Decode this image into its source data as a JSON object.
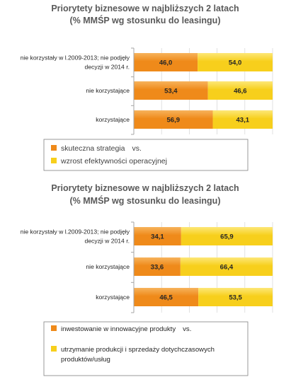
{
  "colors": {
    "series_a": "#ef8a1a",
    "series_a_light": "#f7b35c",
    "series_b": "#f7cf1c",
    "series_b_light": "#fde778",
    "grid": "#d9d9d9",
    "axis": "#a6a6a6"
  },
  "chart_data": [
    {
      "type": "bar",
      "orientation": "horizontal",
      "stacked": true,
      "title": "Priorytety biznesowe w najbliższych 2 latach",
      "subtitle": "(% MMŚP wg stosunku do leasingu)",
      "xlim": [
        0,
        100
      ],
      "categories": [
        "nie korzystały w l.2009-2013; nie podjęły decyzji w 2014 r.",
        "nie korzystające",
        "korzystające"
      ],
      "category_lines": [
        [
          "nie korzystały w l.2009-2013; nie podjęły",
          "decyzji w 2014 r."
        ],
        [
          "nie korzystające"
        ],
        [
          "korzystające"
        ]
      ],
      "series": [
        {
          "name": "skuteczna strategia",
          "values": [
            46.0,
            53.4,
            56.9
          ],
          "labels": [
            "46,0",
            "53,4",
            "56,9"
          ]
        },
        {
          "name": "wzrost efektywności operacyjnej",
          "values": [
            54.0,
            46.6,
            43.1
          ],
          "labels": [
            "54,0",
            "46,6",
            "43,1"
          ]
        }
      ],
      "legend": {
        "position": "bottom",
        "lines": [
          [
            "skuteczna strategia",
            "vs."
          ],
          [
            "wzrost efektywności operacyjnej"
          ]
        ]
      }
    },
    {
      "type": "bar",
      "orientation": "horizontal",
      "stacked": true,
      "title": "Priorytety biznesowe w najbliższych 2 latach",
      "subtitle": "(% MMŚP wg stosunku do leasingu)",
      "xlim": [
        0,
        100
      ],
      "categories": [
        "nie korzystały w l.2009-2013; nie podjęły decyzji w 2014 r.",
        "nie korzystające",
        "korzystające"
      ],
      "category_lines": [
        [
          "nie korzystały w l.2009-2013; nie podjęły",
          "decyzji w 2014 r."
        ],
        [
          "nie korzystające"
        ],
        [
          "korzystające"
        ]
      ],
      "series": [
        {
          "name": "inwestowanie w innowacyjne produkty",
          "values": [
            34.1,
            33.6,
            46.5
          ],
          "labels": [
            "34,1",
            "33,6",
            "46,5"
          ]
        },
        {
          "name": "utrzymanie produkcji i sprzedaży dotychczasowych produktów/usług",
          "values": [
            65.9,
            66.4,
            53.5
          ],
          "labels": [
            "65,9",
            "66,4",
            "53,5"
          ]
        }
      ],
      "legend": {
        "position": "bottom",
        "lines": [
          [
            "inwestowanie w innowacyjne produkty",
            "vs."
          ],
          [
            "utrzymanie produkcji i sprzedaży dotychczasowych"
          ],
          [
            "produktów/usług"
          ]
        ]
      }
    }
  ]
}
